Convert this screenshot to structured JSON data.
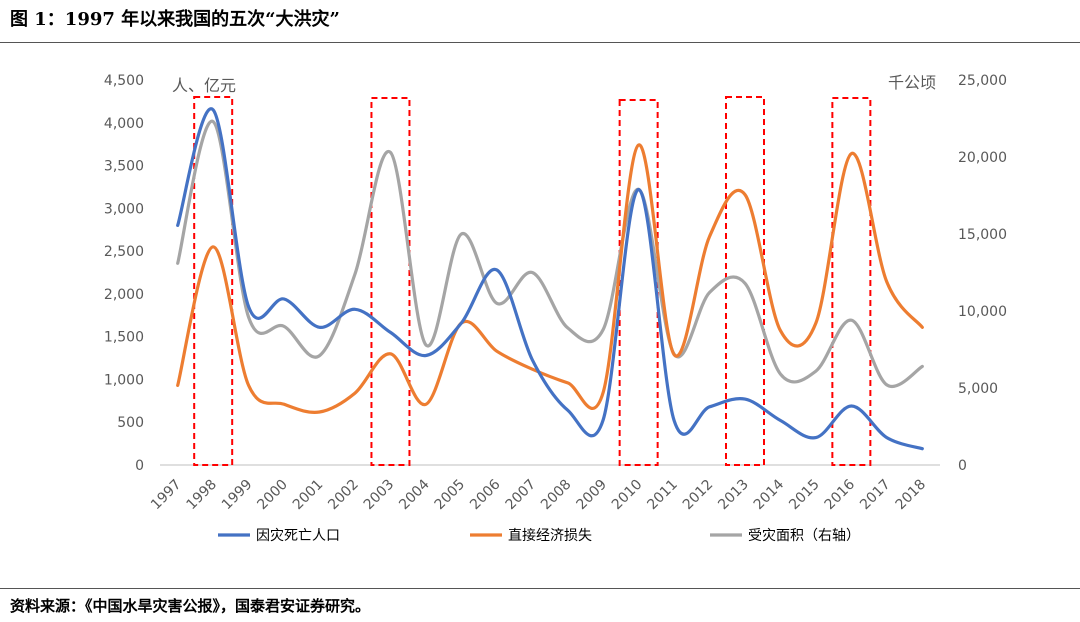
{
  "figure_title": "图 1：1997 年以来我国的五次“大洪灾”",
  "source_note": "资料来源：《中国水旱灾害公报》，国泰君安证券研究。",
  "chart_data": {
    "type": "line",
    "title": "",
    "left_axis": {
      "unit_label": "人、亿元",
      "range": [
        0,
        4500
      ],
      "ticks": [
        "0",
        "500",
        "1,000",
        "1,500",
        "2,000",
        "2,500",
        "3,000",
        "3,500",
        "4,000",
        "4,500"
      ]
    },
    "right_axis": {
      "unit_label": "千公顷",
      "range": [
        0,
        25000
      ],
      "ticks": [
        "0",
        "5,000",
        "10,000",
        "15,000",
        "20,000",
        "25,000"
      ]
    },
    "categories": [
      "1997",
      "1998",
      "1999",
      "2000",
      "2001",
      "2002",
      "2003",
      "2004",
      "2005",
      "2006",
      "2007",
      "2008",
      "2009",
      "2010",
      "2011",
      "2012",
      "2013",
      "2014",
      "2015",
      "2016",
      "2017",
      "2018"
    ],
    "series": [
      {
        "name": "因灾死亡人口",
        "axis": "left",
        "color": "#4472C4",
        "values": [
          2800,
          4150,
          1850,
          1940,
          1610,
          1820,
          1550,
          1280,
          1660,
          2280,
          1230,
          640,
          530,
          3220,
          520,
          680,
          770,
          520,
          320,
          690,
          320,
          190
        ]
      },
      {
        "name": "直接经济损失",
        "axis": "left",
        "color": "#ED7D31",
        "values": [
          930,
          2550,
          930,
          710,
          620,
          840,
          1300,
          710,
          1660,
          1330,
          1120,
          960,
          850,
          3740,
          1290,
          2670,
          3160,
          1570,
          1660,
          3640,
          2140,
          1610
        ]
      },
      {
        "name": "受灾面积（右轴）",
        "axis": "right",
        "color": "#A5A5A5",
        "values": [
          13100,
          22300,
          9600,
          9000,
          7100,
          12400,
          20300,
          7800,
          15000,
          10500,
          12500,
          8900,
          8800,
          17900,
          7200,
          11200,
          11800,
          5900,
          6100,
          9400,
          5200,
          6400
        ]
      }
    ],
    "highlighted_years": [
      "1998",
      "2003",
      "2010",
      "2013",
      "2016"
    ],
    "highlight_style": "red dashed boxes",
    "grid": false,
    "legend_position": "bottom"
  }
}
